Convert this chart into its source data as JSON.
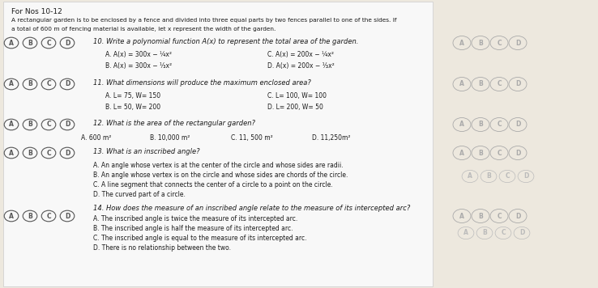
{
  "bg_color": "#ede8de",
  "paper_color": "#f8f8f8",
  "text_color": "#1a1a1a",
  "header": "For Nos 10-12",
  "intro1": "A rectangular garden is to be enclosed by a fence and divided into three equal parts by two fences parallel to one of the sides. If",
  "intro2": "a total of 600 m of fencing material is available, let x represent the width of the garden.",
  "q10_title": "10. Write a polynomial function A(x) to represent the total area of the garden.",
  "q10_A": "A. A(x) = 300x − ¼x²",
  "q10_C": "C. A(x) = 200x − ¼x²",
  "q10_B": "B. A(x) = 300x − ⅓x²",
  "q10_D": "D. A(x) = 200x − ⅓x²",
  "q11_title": "11. What dimensions will produce the maximum enclosed area?",
  "q11_A": "A. L= 75, W= 150",
  "q11_C": "C. L= 100, W= 100",
  "q11_B": "B. L= 50, W= 200",
  "q11_D": "D. L= 200, W= 50",
  "q12_title": "12. What is the area of the rectangular garden?",
  "q12_A": "A. 600 m²",
  "q12_B": "B. 10,000 m²",
  "q12_C": "C. 11, 500 m²",
  "q12_D": "D. 11,250m²",
  "q13_title": "13. What is an inscribed angle?",
  "q13_A": "A. An angle whose vertex is at the center of the circle and whose sides are radii.",
  "q13_B": "B. An angle whose vertex is on the circle and whose sides are chords of the circle.",
  "q13_C": "C. A line segment that connects the center of a circle to a point on the circle.",
  "q13_D": "D. The curved part of a circle.",
  "q14_title": "14. How does the measure of an inscribed angle relate to the measure of its intercepted arc?",
  "q14_A": "A. The inscribed angle is twice the measure of its intercepted arc.",
  "q14_B": "B. The inscribed angle is half the measure of its intercepted arc.",
  "q14_C": "C. The inscribed angle is equal to the measure of its intercepted arc.",
  "q14_D": "D. There is no relationship between the two.",
  "circle_color": "#555555",
  "circle_labels": [
    "A",
    "B",
    "C",
    "D"
  ]
}
